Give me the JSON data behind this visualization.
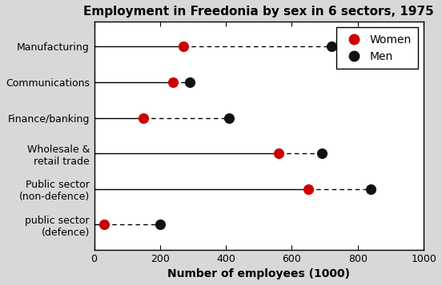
{
  "title": "Employment in Freedonia by sex in 6 sectors, 1975",
  "xlabel": "Number of employees (1000)",
  "categories": [
    "Manufacturing",
    "Communications",
    "Finance/banking",
    "Wholesale &\nretail trade",
    "Public sector\n(non-defence)",
    "public sector\n(defence)"
  ],
  "women": [
    270,
    240,
    150,
    560,
    650,
    30
  ],
  "men": [
    720,
    290,
    410,
    690,
    840,
    200
  ],
  "women_color": "#cc0000",
  "men_color": "#111111",
  "xlim": [
    0,
    1000
  ],
  "xticks": [
    0,
    200,
    400,
    600,
    800,
    1000
  ],
  "bg_color": "#ffffff",
  "fig_bg_color": "#d8d8d8",
  "legend_women": "Women",
  "legend_men": "Men",
  "title_fontsize": 11,
  "label_fontsize": 9,
  "xlabel_fontsize": 10
}
